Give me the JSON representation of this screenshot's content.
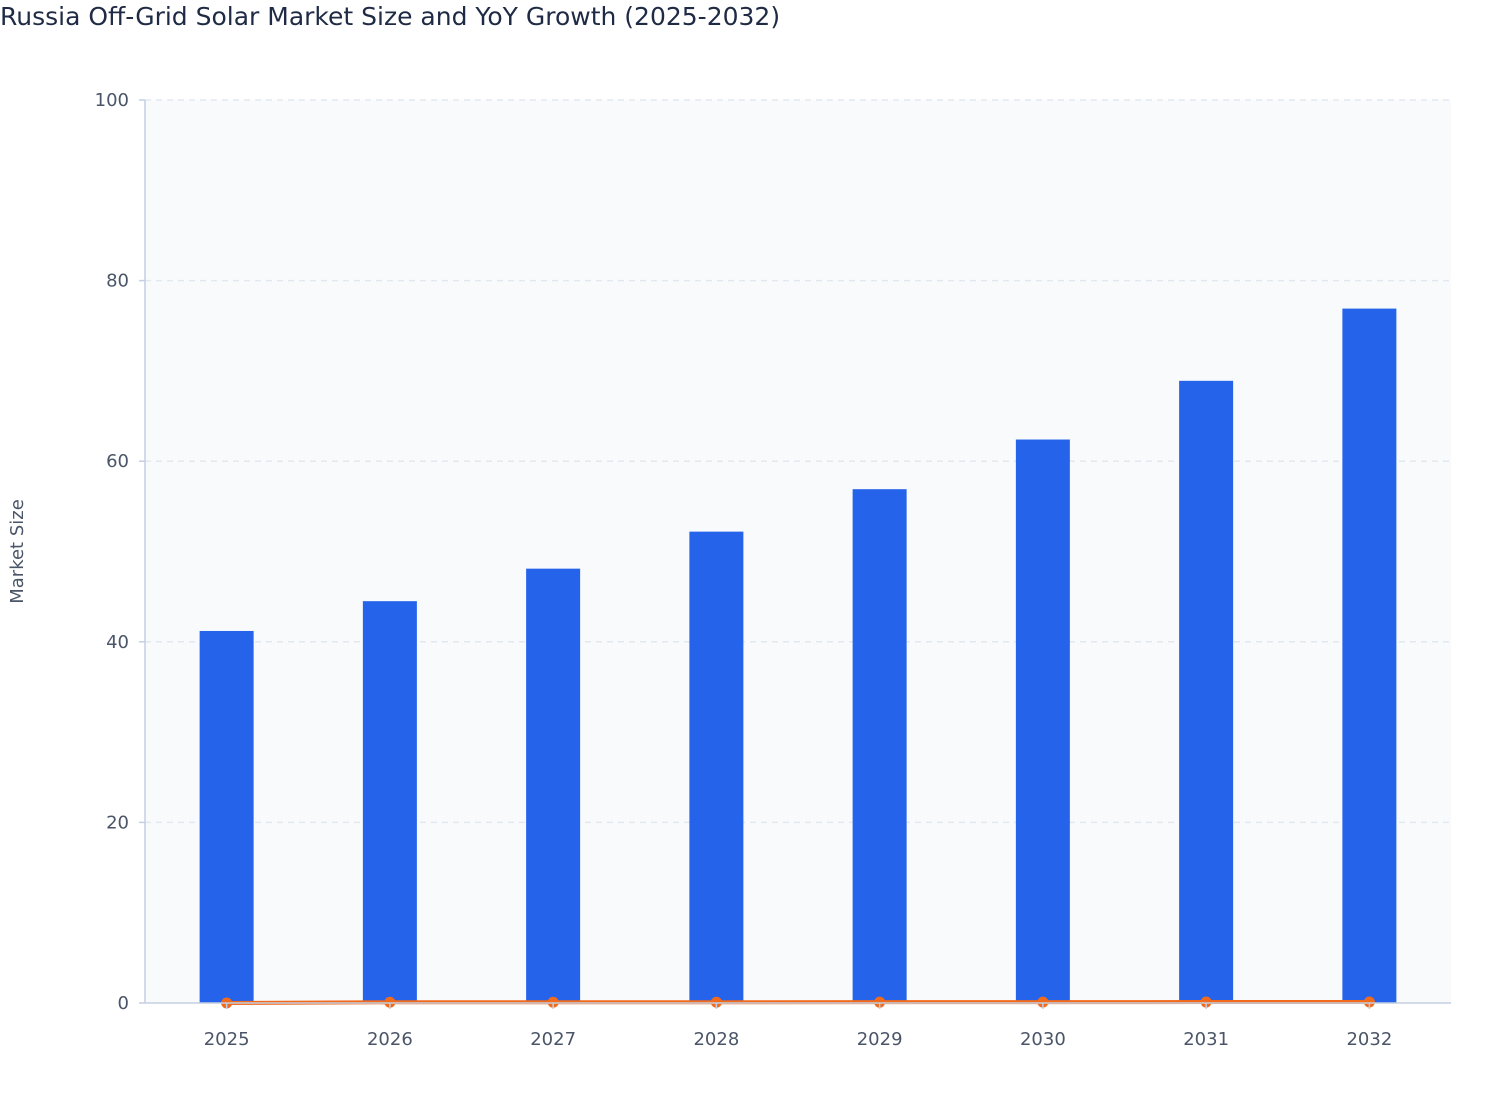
{
  "chart_data": {
    "type": "bar",
    "title": "Russia Off-Grid Solar Market Size and YoY Growth (2025-2032)",
    "xlabel": "",
    "ylabel": "Market Size",
    "categories": [
      "2025",
      "2026",
      "2027",
      "2028",
      "2029",
      "2030",
      "2031",
      "2032"
    ],
    "ylim": [
      0,
      100
    ],
    "yticks": [
      0,
      20,
      40,
      60,
      80,
      100
    ],
    "grid": true,
    "series": [
      {
        "type": "bar",
        "values": [
          41.2,
          44.5,
          48.1,
          52.2,
          56.9,
          62.4,
          68.9,
          76.9
        ],
        "color": "#2563eb"
      },
      {
        "type": "line",
        "values": [
          0,
          0.08,
          0.08,
          0.085,
          0.09,
          0.097,
          0.104,
          0.116
        ],
        "color": "#f26b1d"
      }
    ],
    "colors": {
      "plot_background": "#f8fafc",
      "grid": "#e2e8f0",
      "axis": "#c3cfe2"
    }
  }
}
